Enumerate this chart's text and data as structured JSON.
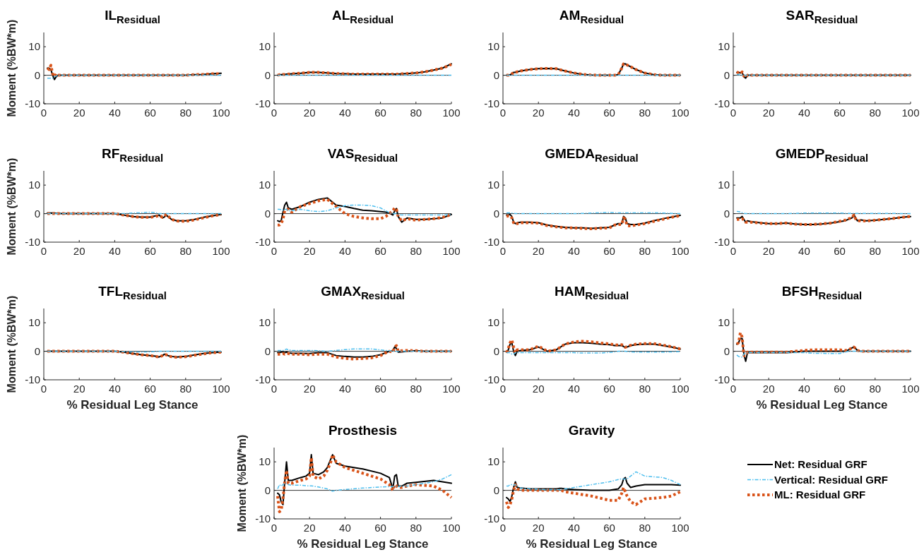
{
  "chart_data": [
    {
      "type": "line",
      "title": "IL$_{Residual}$",
      "ylabel": "Moment (%BW*m)",
      "xlim": [
        0,
        100
      ],
      "ylim": [
        -10,
        15
      ],
      "xticks": [
        0,
        20,
        40,
        60,
        80,
        100
      ],
      "yticks": [
        -10,
        0,
        10
      ],
      "ref_lines": [
        {
          "axis": "y",
          "value": 0,
          "color": "#000000"
        }
      ],
      "x": [
        2,
        3,
        4,
        5,
        6,
        7,
        8,
        10,
        15,
        20,
        25,
        30,
        35,
        40,
        45,
        50,
        55,
        60,
        63,
        65,
        67,
        68,
        69,
        70,
        72,
        75,
        80,
        85,
        90,
        95,
        100
      ],
      "series": [
        {
          "color": "#000000",
          "line_style": "solid",
          "values": [
            2.5,
            2.5,
            2,
            0,
            -1.5,
            -0.5,
            0,
            0,
            0,
            0,
            0,
            0,
            0,
            0,
            0,
            0,
            0,
            0,
            0,
            0,
            0,
            0,
            0,
            0,
            0,
            0,
            0,
            0.2,
            0.3,
            0.5,
            0.7
          ]
        },
        {
          "color": "#4dbeee",
          "line_style": "dashed",
          "values": [
            -1,
            -1,
            -1,
            -1,
            -0.5,
            -0.3,
            0,
            0,
            0,
            0,
            0,
            0,
            0,
            0,
            0,
            0,
            0,
            0,
            0,
            0,
            0,
            0,
            0,
            0,
            0,
            0,
            0,
            0,
            0,
            0,
            0
          ]
        },
        {
          "color": "#d95319",
          "line_style": "dotted",
          "values": [
            2.5,
            2,
            3.5,
            0.5,
            -0.5,
            0.5,
            0,
            0,
            0,
            0,
            0,
            0,
            0,
            0,
            0,
            0,
            0,
            0,
            0,
            0,
            0,
            0,
            0,
            0,
            0,
            0,
            0,
            0.2,
            0.3,
            0.5,
            0.5
          ]
        }
      ]
    },
    {
      "type": "line",
      "title": "AL$_{Residual}$",
      "xlim": [
        0,
        100
      ],
      "ylim": [
        -10,
        15
      ],
      "xticks": [
        0,
        20,
        40,
        60,
        80,
        100
      ],
      "yticks": [
        -10,
        0,
        10
      ],
      "ref_lines": [
        {
          "axis": "y",
          "value": 0,
          "color": "#000000"
        }
      ],
      "x": [
        2,
        3,
        4,
        5,
        6,
        7,
        8,
        10,
        15,
        20,
        25,
        30,
        35,
        40,
        45,
        50,
        55,
        60,
        63,
        65,
        67,
        68,
        69,
        70,
        72,
        75,
        80,
        85,
        90,
        95,
        100
      ],
      "series": [
        {
          "color": "#000000",
          "line_style": "solid",
          "values": [
            0,
            0.2,
            0.2,
            0.3,
            0.3,
            0.4,
            0.4,
            0.5,
            0.7,
            1,
            1,
            0.8,
            0.6,
            0.5,
            0.4,
            0.4,
            0.4,
            0.4,
            0.4,
            0.4,
            0.4,
            0.4,
            0.4,
            0.4,
            0.5,
            0.6,
            0.8,
            1.2,
            1.8,
            2.5,
            4
          ]
        },
        {
          "color": "#4dbeee",
          "line_style": "dashed",
          "values": [
            0,
            0,
            0,
            0,
            0,
            0,
            0,
            0,
            0,
            0,
            0,
            0,
            0,
            0,
            0,
            0,
            0,
            0,
            0,
            0,
            0,
            0,
            0,
            0,
            0,
            0,
            0,
            0,
            0,
            0,
            0
          ]
        },
        {
          "color": "#d95319",
          "line_style": "dotted",
          "values": [
            0,
            0.2,
            0.2,
            0.3,
            0.3,
            0.4,
            0.4,
            0.5,
            0.7,
            1,
            1,
            0.8,
            0.6,
            0.5,
            0.4,
            0.4,
            0.4,
            0.4,
            0.4,
            0.4,
            0.4,
            0.4,
            0.4,
            0.4,
            0.5,
            0.6,
            0.8,
            1.2,
            1.8,
            2.5,
            3.8
          ]
        }
      ]
    },
    {
      "type": "line",
      "title": "AM$_{Residual}$",
      "xlim": [
        0,
        100
      ],
      "ylim": [
        -10,
        15
      ],
      "xticks": [
        0,
        20,
        40,
        60,
        80,
        100
      ],
      "yticks": [
        -10,
        0,
        10
      ],
      "ref_lines": [
        {
          "axis": "y",
          "value": 0,
          "color": "#000000"
        }
      ],
      "x": [
        2,
        3,
        4,
        5,
        6,
        7,
        8,
        10,
        15,
        20,
        25,
        30,
        35,
        40,
        45,
        50,
        55,
        60,
        63,
        65,
        67,
        68,
        69,
        70,
        72,
        75,
        80,
        85,
        90,
        95,
        100
      ],
      "series": [
        {
          "color": "#000000",
          "line_style": "solid",
          "values": [
            0,
            0,
            0.2,
            0.5,
            1,
            1,
            1.2,
            1.5,
            2,
            2.3,
            2.4,
            2.3,
            1.5,
            0.8,
            0.3,
            0.1,
            0,
            0,
            0,
            0.2,
            2.5,
            4,
            4,
            3.6,
            3,
            2,
            0.8,
            0.2,
            0,
            0,
            0
          ]
        },
        {
          "color": "#4dbeee",
          "line_style": "dashed",
          "values": [
            0,
            0,
            0,
            0,
            0,
            0,
            0,
            0,
            0,
            0,
            0,
            0,
            0,
            0,
            0,
            0,
            0,
            0,
            0,
            0,
            0,
            0,
            0,
            0,
            0,
            0,
            0,
            0,
            0,
            0,
            0
          ]
        },
        {
          "color": "#d95319",
          "line_style": "dotted",
          "values": [
            0,
            0,
            0.2,
            0.5,
            1,
            1,
            1.2,
            1.5,
            2,
            2.3,
            2.4,
            2.3,
            1.5,
            0.8,
            0.3,
            0.1,
            0,
            0,
            0,
            0.2,
            2.5,
            4,
            4,
            3.6,
            3,
            2,
            0.8,
            0.2,
            0,
            0,
            0
          ]
        }
      ]
    },
    {
      "type": "line",
      "title": "SAR$_{Residual}$",
      "xlim": [
        0,
        100
      ],
      "ylim": [
        -10,
        15
      ],
      "xticks": [
        0,
        20,
        40,
        60,
        80,
        100
      ],
      "yticks": [
        -10,
        0,
        10
      ],
      "ref_lines": [
        {
          "axis": "y",
          "value": 0,
          "color": "#000000"
        }
      ],
      "x": [
        2,
        3,
        4,
        5,
        6,
        7,
        8,
        10,
        15,
        20,
        25,
        30,
        35,
        40,
        45,
        50,
        55,
        60,
        63,
        65,
        67,
        68,
        69,
        70,
        72,
        75,
        80,
        85,
        90,
        95,
        100
      ],
      "series": [
        {
          "color": "#000000",
          "line_style": "solid",
          "values": [
            1,
            1,
            0.8,
            1,
            -0.5,
            -1,
            0,
            0,
            0,
            0,
            0,
            0,
            0,
            0,
            0,
            0,
            0,
            0,
            0,
            0,
            0,
            0,
            0,
            0,
            0,
            0,
            0,
            0,
            0,
            0,
            0
          ]
        },
        {
          "color": "#4dbeee",
          "line_style": "dashed",
          "values": [
            0.3,
            0.3,
            0,
            0,
            0,
            0,
            0,
            0,
            0,
            0,
            0,
            0,
            0,
            0,
            0,
            0,
            0,
            0,
            0,
            0,
            0,
            0,
            0,
            0,
            0,
            0,
            0,
            0,
            0,
            0,
            0
          ]
        },
        {
          "color": "#d95319",
          "line_style": "dotted",
          "values": [
            1.2,
            0.8,
            0.5,
            1.2,
            -0.3,
            -0.8,
            0,
            0,
            0,
            0,
            0,
            0,
            0,
            0,
            0,
            0,
            0,
            0,
            0,
            0,
            0,
            0,
            0,
            0,
            0,
            0,
            0,
            0,
            0,
            0,
            0
          ]
        }
      ]
    },
    {
      "type": "line",
      "title": "RF$_{Residual}$",
      "ylabel": "Moment (%BW*m)",
      "xlim": [
        0,
        100
      ],
      "ylim": [
        -10,
        15
      ],
      "xticks": [
        0,
        20,
        40,
        60,
        80,
        100
      ],
      "yticks": [
        -10,
        0,
        10
      ],
      "ref_lines": [
        {
          "axis": "y",
          "value": 0,
          "color": "#000000"
        }
      ],
      "x": [
        2,
        3,
        4,
        5,
        6,
        7,
        8,
        10,
        15,
        20,
        25,
        30,
        35,
        40,
        45,
        50,
        55,
        60,
        63,
        65,
        67,
        68,
        69,
        70,
        72,
        75,
        80,
        85,
        90,
        95,
        100
      ],
      "series": [
        {
          "color": "#000000",
          "line_style": "solid",
          "values": [
            0.2,
            0.2,
            0.2,
            0.2,
            0.2,
            0.1,
            0.1,
            0,
            0,
            0,
            0,
            0,
            0,
            0,
            -0.5,
            -1,
            -1.2,
            -1.2,
            -0.8,
            -0.5,
            -1.5,
            -1.2,
            -0.5,
            -1,
            -2,
            -2.5,
            -2.5,
            -2,
            -1.3,
            -0.8,
            -0.3
          ]
        },
        {
          "color": "#4dbeee",
          "line_style": "dashed",
          "values": [
            0,
            0,
            0,
            0,
            0,
            0,
            0,
            0,
            0,
            0,
            0,
            0,
            0,
            0,
            0,
            0.2,
            0.3,
            0.5,
            0.3,
            0,
            0,
            0,
            0,
            0,
            0,
            0,
            0,
            0,
            0,
            0,
            0
          ]
        },
        {
          "color": "#d95319",
          "line_style": "dotted",
          "values": [
            0,
            0,
            0,
            0,
            0,
            0,
            0,
            0,
            0,
            0,
            0,
            0,
            0,
            0,
            -0.5,
            -1,
            -1.3,
            -1.3,
            -1,
            -0.7,
            -1.3,
            -1,
            -0.3,
            -0.8,
            -2,
            -2.6,
            -2.7,
            -2.2,
            -1.5,
            -0.8,
            -0.3
          ]
        }
      ]
    },
    {
      "type": "line",
      "title": "VAS$_{Residual}$",
      "xlim": [
        0,
        100
      ],
      "ylim": [
        -10,
        15
      ],
      "xticks": [
        0,
        20,
        40,
        60,
        80,
        100
      ],
      "yticks": [
        -10,
        0,
        10
      ],
      "ref_lines": [
        {
          "axis": "y",
          "value": 0,
          "color": "#000000"
        }
      ],
      "x": [
        2,
        3,
        4,
        5,
        6,
        7,
        8,
        10,
        15,
        20,
        25,
        30,
        35,
        40,
        45,
        50,
        55,
        60,
        63,
        65,
        67,
        68,
        69,
        70,
        72,
        75,
        80,
        85,
        90,
        95,
        100
      ],
      "series": [
        {
          "color": "#000000",
          "line_style": "solid",
          "values": [
            -2.5,
            -2.8,
            -2.5,
            0.5,
            3,
            4,
            2,
            1.5,
            2.5,
            4,
            5,
            5.5,
            3,
            2.5,
            1.8,
            1.2,
            1,
            0.7,
            0.5,
            0.2,
            -0.5,
            1,
            1.8,
            -1,
            -3,
            -1.5,
            -2,
            -2,
            -1.8,
            -1.5,
            -0.3
          ]
        },
        {
          "color": "#4dbeee",
          "line_style": "dashed",
          "values": [
            1.5,
            1.5,
            1.3,
            1.2,
            1.5,
            1.5,
            1,
            1,
            1.5,
            1,
            0.7,
            1,
            2,
            2.8,
            3,
            3,
            2.8,
            2,
            1,
            0.3,
            0,
            0,
            0,
            -0.3,
            -0.5,
            -0.5,
            -0.5,
            -0.5,
            -0.5,
            -0.5,
            -0.3
          ]
        },
        {
          "color": "#d95319",
          "line_style": "dotted",
          "values": [
            -4,
            -4,
            -3.5,
            -2,
            1,
            1.5,
            1.5,
            0.5,
            2.5,
            3.5,
            4.5,
            5,
            2.5,
            0,
            -1,
            -1.5,
            -1.8,
            -1.8,
            -1,
            0,
            1,
            2,
            1.5,
            -1,
            -2.5,
            -1.8,
            -2.3,
            -2,
            -1.8,
            -1.3,
            -0.3
          ]
        }
      ]
    },
    {
      "type": "line",
      "title": "GMEDA$_{Residual}$",
      "xlim": [
        0,
        100
      ],
      "ylim": [
        -10,
        15
      ],
      "xticks": [
        0,
        20,
        40,
        60,
        80,
        100
      ],
      "yticks": [
        -10,
        0,
        10
      ],
      "ref_lines": [
        {
          "axis": "y",
          "value": 0,
          "color": "#000000"
        }
      ],
      "x": [
        2,
        3,
        4,
        5,
        6,
        7,
        8,
        10,
        15,
        20,
        25,
        30,
        35,
        40,
        45,
        50,
        55,
        60,
        63,
        65,
        67,
        68,
        69,
        70,
        72,
        75,
        80,
        85,
        90,
        95,
        100
      ],
      "series": [
        {
          "color": "#000000",
          "line_style": "solid",
          "values": [
            -0.5,
            -0.5,
            -0.3,
            -1,
            -3,
            -3.5,
            -3.2,
            -3,
            -3,
            -3.2,
            -4,
            -4.5,
            -4.8,
            -5,
            -5,
            -5.2,
            -5,
            -4.8,
            -4,
            -3.5,
            -3.5,
            -1,
            -1.5,
            -3.5,
            -3.8,
            -3.8,
            -3.3,
            -2.5,
            -1.8,
            -1.2,
            -0.6
          ]
        },
        {
          "color": "#4dbeee",
          "line_style": "dashed",
          "values": [
            0.3,
            0.3,
            0.3,
            0.2,
            0.1,
            0,
            0,
            0,
            0,
            0,
            0,
            0,
            0,
            0,
            0.1,
            0.2,
            0.3,
            0.4,
            0.3,
            0.3,
            0.3,
            0.3,
            0.3,
            0.3,
            0.3,
            0.3,
            0.3,
            0.3,
            0.2,
            0.1,
            0
          ]
        },
        {
          "color": "#d95319",
          "line_style": "dotted",
          "values": [
            -1,
            -0.8,
            -0.8,
            -1.5,
            -3.2,
            -3.8,
            -3.5,
            -3.2,
            -3.2,
            -3.3,
            -4.2,
            -4.6,
            -5,
            -5,
            -5.2,
            -5.3,
            -5.1,
            -5,
            -4,
            -3.8,
            -3.8,
            -1.5,
            -2,
            -4.2,
            -4.3,
            -4,
            -3.5,
            -2.7,
            -2,
            -1.3,
            -0.7
          ]
        }
      ]
    },
    {
      "type": "line",
      "title": "GMEDP$_{Residual}$",
      "xlim": [
        0,
        100
      ],
      "ylim": [
        -10,
        15
      ],
      "xticks": [
        0,
        20,
        40,
        60,
        80,
        100
      ],
      "yticks": [
        -10,
        0,
        10
      ],
      "ref_lines": [
        {
          "axis": "y",
          "value": 0,
          "color": "#000000"
        }
      ],
      "x": [
        2,
        3,
        4,
        5,
        6,
        7,
        8,
        10,
        15,
        20,
        25,
        30,
        35,
        40,
        45,
        50,
        55,
        60,
        63,
        65,
        67,
        68,
        69,
        70,
        72,
        75,
        80,
        85,
        90,
        95,
        100
      ],
      "series": [
        {
          "color": "#000000",
          "line_style": "solid",
          "values": [
            -1.5,
            -1.5,
            -1.5,
            -1,
            -2,
            -3,
            -2.5,
            -2.8,
            -3.2,
            -3.5,
            -3.5,
            -3.3,
            -3.6,
            -3.8,
            -3.8,
            -3.6,
            -3.3,
            -2.8,
            -2.5,
            -2,
            -1.5,
            -0.3,
            -1.5,
            -2.5,
            -2.2,
            -2.5,
            -2.3,
            -2,
            -1.7,
            -1.3,
            -1
          ]
        },
        {
          "color": "#4dbeee",
          "line_style": "dashed",
          "values": [
            0.8,
            0.7,
            0.6,
            0.3,
            0.1,
            0,
            0,
            0,
            0,
            0,
            0,
            0,
            0.1,
            0.2,
            0.2,
            0.2,
            0.2,
            0.2,
            0.1,
            0.1,
            0.1,
            0.1,
            0.1,
            0.1,
            0.1,
            0.1,
            0.1,
            0.1,
            0.1,
            0,
            0
          ]
        },
        {
          "color": "#d95319",
          "line_style": "dotted",
          "values": [
            -2,
            -2,
            -2,
            -1.8,
            -2.2,
            -3,
            -3,
            -3,
            -3.3,
            -3.5,
            -3.5,
            -3.3,
            -3.7,
            -3.8,
            -3.8,
            -3.6,
            -3.3,
            -2.7,
            -2.3,
            -1.8,
            -1.5,
            -0.5,
            -1.8,
            -2.5,
            -2.5,
            -2.6,
            -2.3,
            -2,
            -1.7,
            -1.3,
            -1
          ]
        }
      ]
    },
    {
      "type": "line",
      "title": "TFL$_{Residual}$",
      "xlabel": "% Residual Leg Stance",
      "ylabel": "Moment (%BW*m)",
      "xlim": [
        0,
        100
      ],
      "ylim": [
        -10,
        15
      ],
      "xticks": [
        0,
        20,
        40,
        60,
        80,
        100
      ],
      "yticks": [
        -10,
        0,
        10
      ],
      "ref_lines": [
        {
          "axis": "y",
          "value": 0,
          "color": "#000000"
        }
      ],
      "x": [
        2,
        3,
        4,
        5,
        6,
        7,
        8,
        10,
        15,
        20,
        25,
        30,
        35,
        40,
        45,
        50,
        55,
        60,
        63,
        65,
        67,
        68,
        69,
        70,
        72,
        75,
        80,
        85,
        90,
        95,
        100
      ],
      "series": [
        {
          "color": "#000000",
          "line_style": "solid",
          "values": [
            0,
            0,
            0,
            0,
            0,
            0,
            0,
            0,
            0,
            0,
            0,
            0,
            0,
            0,
            -0.3,
            -0.8,
            -1.2,
            -1.5,
            -1.7,
            -2,
            -1.5,
            -1,
            -1.2,
            -1.5,
            -1.8,
            -2,
            -1.8,
            -1.3,
            -0.8,
            -0.5,
            -0.3
          ]
        },
        {
          "color": "#4dbeee",
          "line_style": "dashed",
          "values": [
            0,
            0,
            0,
            0,
            0,
            0,
            0,
            0,
            0,
            0,
            0,
            0,
            0,
            0,
            -0.1,
            -0.2,
            -0.2,
            -0.2,
            -0.1,
            0,
            0,
            0,
            0,
            0,
            0,
            0,
            0,
            0,
            0,
            0,
            0
          ]
        },
        {
          "color": "#d95319",
          "line_style": "dotted",
          "values": [
            0,
            0,
            0,
            0,
            0,
            0,
            0,
            0,
            0,
            0,
            0,
            0,
            0,
            0,
            -0.3,
            -0.8,
            -1.2,
            -1.5,
            -1.8,
            -2,
            -1.5,
            -1.1,
            -1.2,
            -1.6,
            -1.9,
            -2.1,
            -1.9,
            -1.4,
            -0.9,
            -0.5,
            -0.3
          ]
        }
      ]
    },
    {
      "type": "line",
      "title": "GMAX$_{Residual}$",
      "xlim": [
        0,
        100
      ],
      "ylim": [
        -10,
        15
      ],
      "xticks": [
        0,
        20,
        40,
        60,
        80,
        100
      ],
      "yticks": [
        -10,
        0,
        10
      ],
      "ref_lines": [
        {
          "axis": "y",
          "value": 0,
          "color": "#000000"
        }
      ],
      "x": [
        2,
        3,
        4,
        5,
        6,
        7,
        8,
        10,
        15,
        20,
        25,
        30,
        35,
        40,
        45,
        50,
        55,
        60,
        63,
        65,
        67,
        68,
        69,
        70,
        72,
        75,
        80,
        85,
        90,
        95,
        100
      ],
      "series": [
        {
          "color": "#000000",
          "line_style": "solid",
          "values": [
            -0.5,
            -0.5,
            -0.3,
            -0.3,
            -0.5,
            -0.3,
            -0.5,
            -0.7,
            -0.7,
            -0.8,
            -0.5,
            -0.5,
            -1.5,
            -1.8,
            -2,
            -2,
            -1.8,
            -1.2,
            -0.5,
            0,
            0.3,
            1.5,
            1,
            -0.3,
            -0.2,
            0,
            0.2,
            0,
            0,
            0,
            0
          ]
        },
        {
          "color": "#4dbeee",
          "line_style": "dashed",
          "values": [
            0.3,
            0.3,
            0.3,
            0.3,
            0.5,
            0.8,
            0.5,
            0.3,
            0.3,
            0.3,
            0.2,
            0,
            0.3,
            0.6,
            0.8,
            0.8,
            0.8,
            0.5,
            0.3,
            0.2,
            0,
            0,
            0,
            0,
            0,
            0,
            0,
            0,
            0,
            0,
            0
          ]
        },
        {
          "color": "#d95319",
          "line_style": "dotted",
          "values": [
            -1,
            -1,
            -1,
            -0.8,
            -1,
            -0.8,
            -0.8,
            -1,
            -1,
            -1.2,
            -1,
            -1,
            -2,
            -2.5,
            -2.7,
            -2.5,
            -2.3,
            -1.5,
            -0.5,
            0,
            -0.3,
            1.5,
            2,
            0,
            0.2,
            0.3,
            0.2,
            0,
            0,
            0,
            0
          ]
        }
      ]
    },
    {
      "type": "line",
      "title": "HAM$_{Residual}$",
      "xlim": [
        0,
        100
      ],
      "ylim": [
        -10,
        15
      ],
      "xticks": [
        0,
        20,
        40,
        60,
        80,
        100
      ],
      "yticks": [
        -10,
        0,
        10
      ],
      "ref_lines": [
        {
          "axis": "y",
          "value": 0,
          "color": "#000000"
        }
      ],
      "x": [
        2,
        3,
        4,
        5,
        6,
        7,
        8,
        10,
        15,
        20,
        25,
        30,
        35,
        40,
        45,
        50,
        55,
        60,
        63,
        65,
        67,
        68,
        69,
        70,
        72,
        75,
        80,
        85,
        90,
        95,
        100
      ],
      "series": [
        {
          "color": "#000000",
          "line_style": "solid",
          "values": [
            -0.3,
            0.5,
            2.5,
            3,
            0,
            -1.5,
            0,
            0.3,
            0.5,
            1.5,
            0,
            0.5,
            2.5,
            3,
            3,
            2.8,
            2.5,
            2.3,
            2,
            2,
            2,
            1.7,
            1.3,
            1.5,
            2,
            2.3,
            2.5,
            2.5,
            2,
            1.5,
            0.8
          ]
        },
        {
          "color": "#4dbeee",
          "line_style": "dashed",
          "values": [
            -0.5,
            -0.5,
            -0.5,
            -1,
            -1,
            -0.5,
            -0.5,
            -0.5,
            -0.5,
            -0.5,
            -0.5,
            -0.5,
            -0.5,
            -0.5,
            -0.6,
            -0.6,
            -0.6,
            -0.4,
            -0.2,
            0,
            0,
            0,
            0,
            -0.1,
            -0.2,
            -0.3,
            -0.3,
            -0.3,
            -0.3,
            -0.2,
            -0.1
          ]
        },
        {
          "color": "#d95319",
          "line_style": "dotted",
          "values": [
            -0.5,
            1,
            3,
            4,
            1.5,
            -0.5,
            0.5,
            0.5,
            0.5,
            1.8,
            0,
            0.5,
            2.5,
            3.3,
            3.5,
            3.3,
            2.9,
            2.6,
            2.3,
            2.2,
            2.3,
            2,
            1.4,
            1.6,
            2.1,
            2.5,
            2.7,
            2.7,
            2.2,
            1.6,
            0.8
          ]
        }
      ]
    },
    {
      "type": "line",
      "title": "BFSH$_{Residual}$",
      "xlabel": "% Residual Leg Stance",
      "xlim": [
        0,
        100
      ],
      "ylim": [
        -10,
        15
      ],
      "xticks": [
        0,
        20,
        40,
        60,
        80,
        100
      ],
      "yticks": [
        -10,
        0,
        10
      ],
      "ref_lines": [
        {
          "axis": "y",
          "value": 0,
          "color": "#000000"
        }
      ],
      "x": [
        2,
        3,
        4,
        5,
        6,
        7,
        8,
        10,
        15,
        20,
        25,
        30,
        35,
        40,
        45,
        50,
        55,
        60,
        63,
        65,
        67,
        68,
        69,
        70,
        72,
        75,
        80,
        85,
        90,
        95,
        100
      ],
      "series": [
        {
          "color": "#000000",
          "line_style": "solid",
          "values": [
            2.5,
            3,
            4.5,
            4.5,
            -1,
            -3.5,
            -0.5,
            -0.5,
            -0.5,
            -0.5,
            -0.5,
            -0.5,
            -0.3,
            0,
            0,
            0,
            0,
            0,
            0,
            0.5,
            1.2,
            1.5,
            1,
            0.3,
            0,
            0,
            0,
            0,
            0,
            0,
            0
          ]
        },
        {
          "color": "#4dbeee",
          "line_style": "dashed",
          "values": [
            -1.3,
            -1.8,
            -2,
            -2,
            -1,
            -0.5,
            -0.5,
            -0.5,
            -0.5,
            -0.5,
            -0.5,
            -0.5,
            -0.5,
            -0.5,
            -0.7,
            -0.7,
            -0.8,
            -0.8,
            -0.3,
            0,
            0,
            0,
            0,
            0,
            0,
            0,
            0,
            0,
            0,
            0,
            0
          ]
        },
        {
          "color": "#d95319",
          "line_style": "dotted",
          "values": [
            2.5,
            3,
            6.5,
            5,
            -1.5,
            -1.5,
            -0.3,
            -0.3,
            -0.3,
            -0.3,
            -0.3,
            -0.3,
            0,
            0.3,
            0.5,
            0.5,
            0.5,
            0.5,
            0.3,
            0.5,
            1.2,
            1.5,
            1,
            0.3,
            0,
            0,
            0,
            0,
            0,
            0,
            0
          ]
        }
      ]
    },
    {
      "type": "line",
      "title": "Prosthesis",
      "xlabel": "% Residual Leg Stance",
      "ylabel": "Moment (%BW*m)",
      "xlim": [
        0,
        100
      ],
      "ylim": [
        -10,
        15
      ],
      "xticks": [
        0,
        20,
        40,
        60,
        80,
        100
      ],
      "yticks": [
        -10,
        0,
        10
      ],
      "ref_lines": [
        {
          "axis": "y",
          "value": 0,
          "color": "#000000"
        }
      ],
      "x": [
        2,
        3,
        4,
        5,
        6,
        7,
        8,
        10,
        15,
        18,
        20,
        21,
        22,
        25,
        28,
        30,
        32,
        33,
        35,
        40,
        50,
        60,
        65,
        67,
        68,
        69,
        70,
        72,
        75,
        80,
        90,
        95,
        100
      ],
      "series": [
        {
          "color": "#000000",
          "line_style": "solid",
          "values": [
            -1,
            -1.5,
            -4,
            -5,
            3,
            10,
            3.5,
            3.5,
            4.5,
            5,
            6,
            12.5,
            6,
            5.5,
            6.5,
            8,
            11,
            12.5,
            9.5,
            8.5,
            7.5,
            6,
            4.5,
            0.5,
            5,
            5.5,
            1.5,
            1.5,
            2.5,
            2.8,
            3.5,
            3,
            2.5
          ]
        },
        {
          "color": "#4dbeee",
          "line_style": "dashed",
          "values": [
            0.5,
            2,
            1.5,
            2,
            2.5,
            2.5,
            2,
            1.8,
            1.8,
            1.6,
            1.6,
            1.6,
            1.5,
            1.2,
            0.8,
            0.5,
            0,
            -0.3,
            0,
            0.3,
            0.8,
            1.2,
            1.3,
            1.3,
            1.3,
            1.3,
            1.3,
            1.5,
            1.5,
            2,
            3,
            4,
            5.5
          ]
        },
        {
          "color": "#d95319",
          "line_style": "dotted",
          "values": [
            -2,
            -7.5,
            -7,
            -3,
            3,
            7,
            2.5,
            2.5,
            3.5,
            4,
            5,
            11.5,
            5,
            4,
            5,
            7,
            10,
            12.5,
            10,
            8,
            6,
            4,
            2,
            0,
            2,
            1.5,
            1,
            1,
            1.5,
            2,
            1.5,
            0,
            -2.5
          ]
        }
      ]
    },
    {
      "type": "line",
      "title": "Gravity",
      "xlabel": "% Residual Leg Stance",
      "xlim": [
        0,
        100
      ],
      "ylim": [
        -10,
        15
      ],
      "xticks": [
        0,
        20,
        40,
        60,
        80,
        100
      ],
      "yticks": [
        -10,
        0,
        10
      ],
      "ref_lines": [
        {
          "axis": "y",
          "value": 0,
          "color": "#000000"
        }
      ],
      "legend": "right",
      "x": [
        2,
        3,
        4,
        5,
        6,
        7,
        8,
        10,
        15,
        18,
        20,
        21,
        22,
        25,
        28,
        30,
        32,
        33,
        35,
        40,
        50,
        60,
        65,
        67,
        68,
        69,
        70,
        72,
        75,
        80,
        90,
        95,
        100
      ],
      "series": [
        {
          "name": "Net: Residual GRF",
          "color": "#000000",
          "line_style": "solid",
          "values": [
            -2.5,
            -3,
            -4,
            -2,
            1,
            3,
            1,
            0.8,
            0.5,
            0.5,
            0.5,
            0.5,
            0.5,
            0.5,
            0.5,
            0.5,
            0.7,
            0.7,
            0.5,
            0.3,
            0,
            0,
            0.5,
            2,
            4,
            4.5,
            2.5,
            1,
            1.5,
            2,
            2,
            2,
            1.8
          ]
        },
        {
          "name": "Vertical: Residual GRF",
          "color": "#4dbeee",
          "line_style": "dashed",
          "values": [
            1.5,
            1.5,
            2,
            2,
            1.8,
            2,
            1.5,
            0.8,
            0.5,
            0.5,
            0.3,
            0.3,
            0.3,
            0.3,
            0.3,
            0.3,
            0.3,
            0.3,
            0.5,
            1,
            2,
            3,
            3.8,
            4,
            4,
            4,
            4,
            5,
            6.5,
            5,
            4.5,
            3.5,
            2
          ]
        },
        {
          "name": "ML: Residual GRF",
          "color": "#d95319",
          "line_style": "dotted",
          "values": [
            -4,
            -6,
            -5,
            -3,
            0,
            2,
            0.5,
            0,
            0,
            0,
            0,
            0,
            0,
            0,
            0,
            0,
            0,
            0,
            -0.5,
            -1,
            -2,
            -3.5,
            -3.5,
            -1,
            1,
            -0.5,
            -2,
            -4,
            -5,
            -3,
            -2.5,
            -2,
            -0.5
          ]
        }
      ]
    }
  ]
}
